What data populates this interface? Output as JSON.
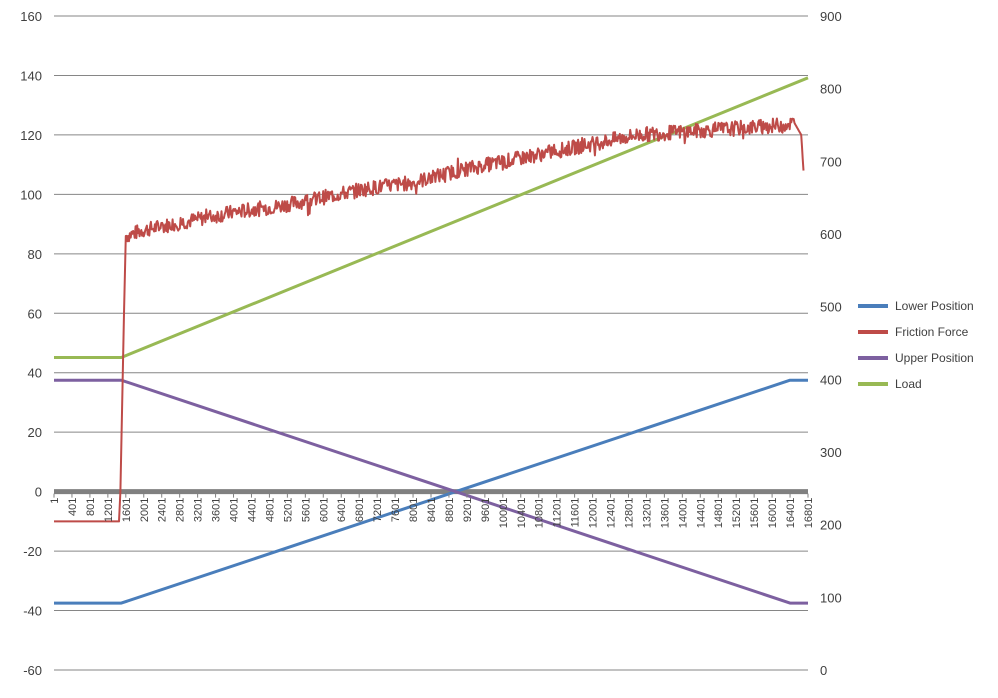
{
  "chart_data": {
    "type": "line",
    "title": "",
    "xlabel": "",
    "ylabel": "",
    "y2label": "",
    "x_range": [
      1,
      16801
    ],
    "ylim": [
      -60,
      160
    ],
    "y2lim": [
      0,
      900
    ],
    "yticks": [
      "160",
      "140",
      "120",
      "100",
      "80",
      "60",
      "40",
      "20",
      "0",
      "-20",
      "-40",
      "-60"
    ],
    "y2ticks": [
      "900",
      "800",
      "700",
      "600",
      "500",
      "400",
      "300",
      "200",
      "100",
      "0"
    ],
    "x_tick_labels": [
      "1",
      "401",
      "801",
      "1201",
      "1601",
      "2001",
      "2401",
      "2801",
      "3201",
      "3601",
      "4001",
      "4401",
      "4801",
      "5201",
      "5601",
      "6001",
      "6401",
      "6801",
      "7201",
      "7601",
      "8001",
      "8401",
      "8801",
      "9201",
      "9601",
      "10001",
      "10401",
      "10801",
      "11201",
      "11601",
      "12001",
      "12401",
      "12801",
      "13201",
      "13601",
      "14001",
      "14401",
      "14801",
      "15201",
      "15601",
      "16001",
      "16401",
      "16801"
    ],
    "grid": true,
    "legend_position": "right",
    "series": [
      {
        "name": "Lower Position",
        "axis": "left",
        "color": "#4a7ebb",
        "x": [
          1,
          1500,
          16400,
          16801
        ],
        "values": [
          -37.5,
          -37.5,
          37.5,
          37.5
        ]
      },
      {
        "name": "Friction Force",
        "axis": "left",
        "color": "#be4b48",
        "x": [
          1,
          1450,
          1480,
          1520,
          1560,
          1600,
          2000,
          3000,
          4000,
          5000,
          6000,
          7000,
          8000,
          9000,
          10000,
          11000,
          12000,
          13000,
          14000,
          15000,
          16000,
          16500,
          16650,
          16700
        ],
        "values": [
          -10,
          -10,
          0,
          30,
          60,
          86,
          88,
          91,
          94,
          96,
          99,
          102,
          104,
          108,
          111,
          114,
          117,
          120,
          121,
          122,
          123,
          124,
          120,
          108
        ]
      },
      {
        "name": "Upper Position",
        "axis": "left",
        "color": "#7d60a0",
        "x": [
          1,
          1500,
          16400,
          16801
        ],
        "values": [
          37.5,
          37.5,
          -37.5,
          -37.5
        ]
      },
      {
        "name": "Load",
        "axis": "right",
        "color": "#98b954",
        "x": [
          1,
          1500,
          16801
        ],
        "values": [
          430,
          430,
          815
        ]
      }
    ]
  }
}
